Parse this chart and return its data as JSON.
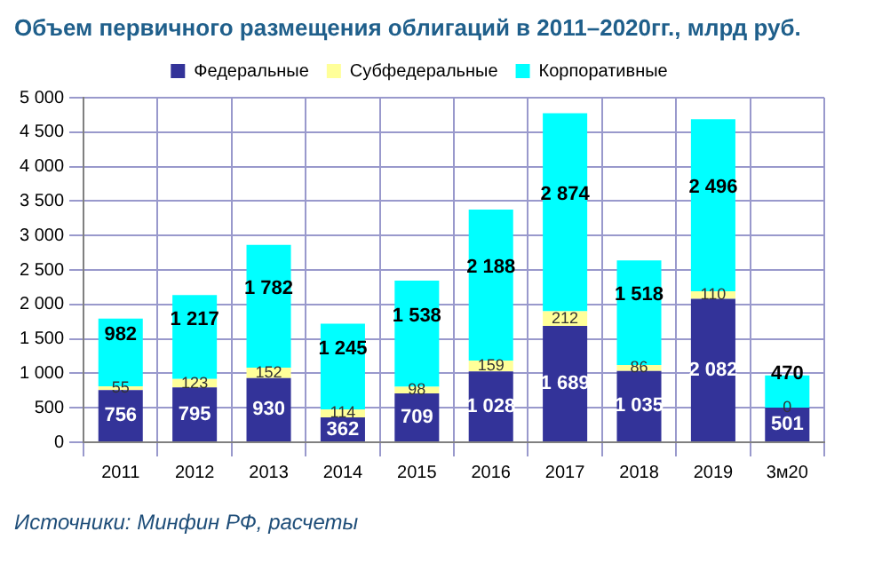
{
  "chart_data": {
    "type": "bar",
    "title": "Объем первичного размещения облигаций в 2011–2020гг., млрд руб.",
    "categories": [
      "2011",
      "2012",
      "2013",
      "2014",
      "2015",
      "2016",
      "2017",
      "2018",
      "2019",
      "3м20"
    ],
    "stacked": true,
    "series": [
      {
        "name": "Федеральные",
        "color": "#333399",
        "values": [
          756,
          795,
          930,
          362,
          709,
          1028,
          1689,
          1035,
          2082,
          501
        ],
        "value_labels": [
          "756",
          "795",
          "930",
          "362",
          "709",
          "1 028",
          "1 689",
          "1 035",
          "2 082",
          "501"
        ]
      },
      {
        "name": "Субфедеральные",
        "color": "#ffff99",
        "values": [
          55,
          123,
          152,
          114,
          98,
          159,
          212,
          86,
          110,
          0
        ],
        "value_labels": [
          "55",
          "123",
          "152",
          "114",
          "98",
          "159",
          "212",
          "86",
          "110",
          "0"
        ]
      },
      {
        "name": "Корпоративные",
        "color": "#00ffff",
        "values": [
          982,
          1217,
          1782,
          1245,
          1538,
          2188,
          2874,
          1518,
          2496,
          470
        ],
        "value_labels": [
          "982",
          "1 217",
          "1 782",
          "1 245",
          "1 538",
          "2 188",
          "2 874",
          "1 518",
          "2 496",
          "470"
        ]
      }
    ],
    "ylim": [
      0,
      5000
    ],
    "yticks": [
      {
        "value": 0,
        "label": "0"
      },
      {
        "value": 500,
        "label": "500"
      },
      {
        "value": 1000,
        "label": "1 000"
      },
      {
        "value": 1500,
        "label": "1 500"
      },
      {
        "value": 2000,
        "label": "2 000"
      },
      {
        "value": 2500,
        "label": "2 500"
      },
      {
        "value": 3000,
        "label": "3 000"
      },
      {
        "value": 3500,
        "label": "3 500"
      },
      {
        "value": 4000,
        "label": "4 000"
      },
      {
        "value": 4500,
        "label": "4 500"
      },
      {
        "value": 5000,
        "label": "5 000"
      }
    ],
    "grid": true,
    "legend": "top",
    "annotations": [
      "Источники: Минфин РФ, расчеты"
    ]
  }
}
